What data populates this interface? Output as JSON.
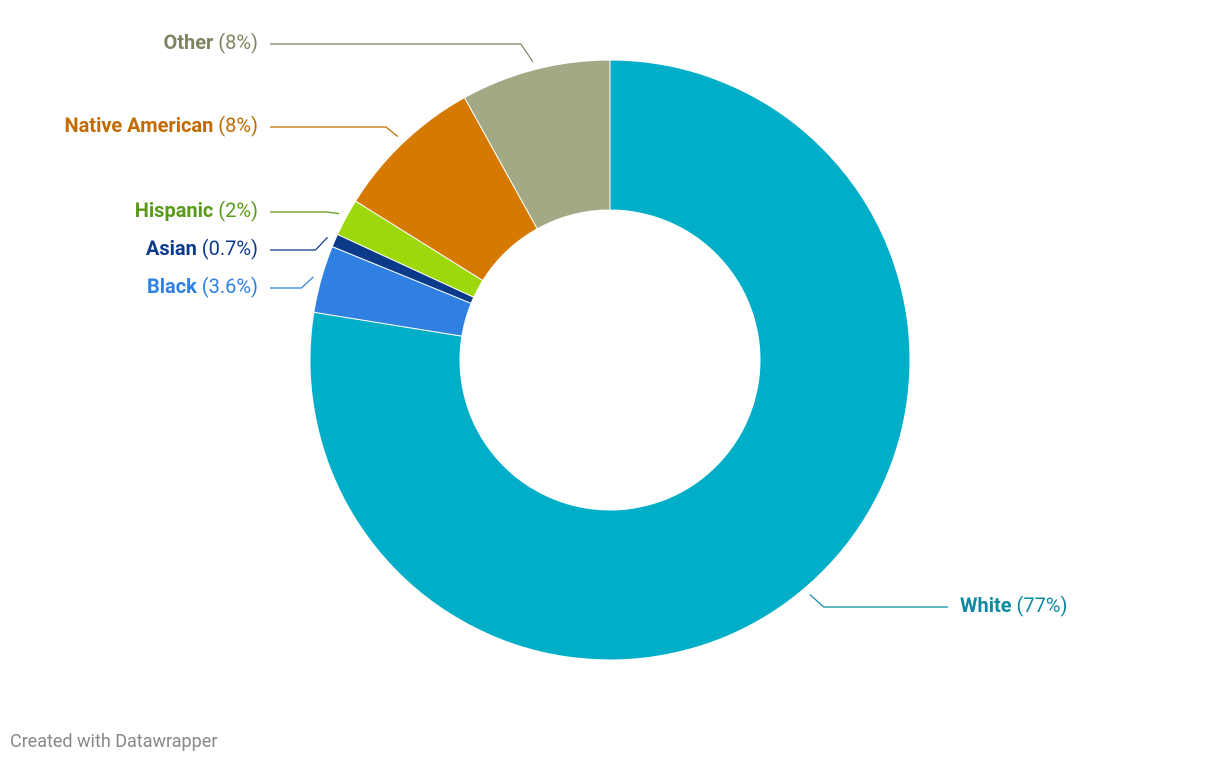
{
  "chart_data": {
    "type": "donut",
    "categories": [
      "White",
      "Black",
      "Asian",
      "Hispanic",
      "Native American",
      "Other"
    ],
    "values": [
      77,
      3.6,
      0.7,
      2,
      8,
      8
    ],
    "value_labels": [
      "(77%)",
      "(3.6%)",
      "(0.7%)",
      "(2%)",
      "(8%)",
      "(8%)"
    ],
    "colors": [
      "#00aec8",
      "#2f80e0",
      "#0b3a8a",
      "#9cd80a",
      "#d67900",
      "#a3a985"
    ],
    "label_colors": [
      "#0a8aa0",
      "#2f80e0",
      "#0b3a8a",
      "#5a9a18",
      "#c06a00",
      "#7d8460"
    ],
    "credit": "Created with Datawrapper"
  }
}
